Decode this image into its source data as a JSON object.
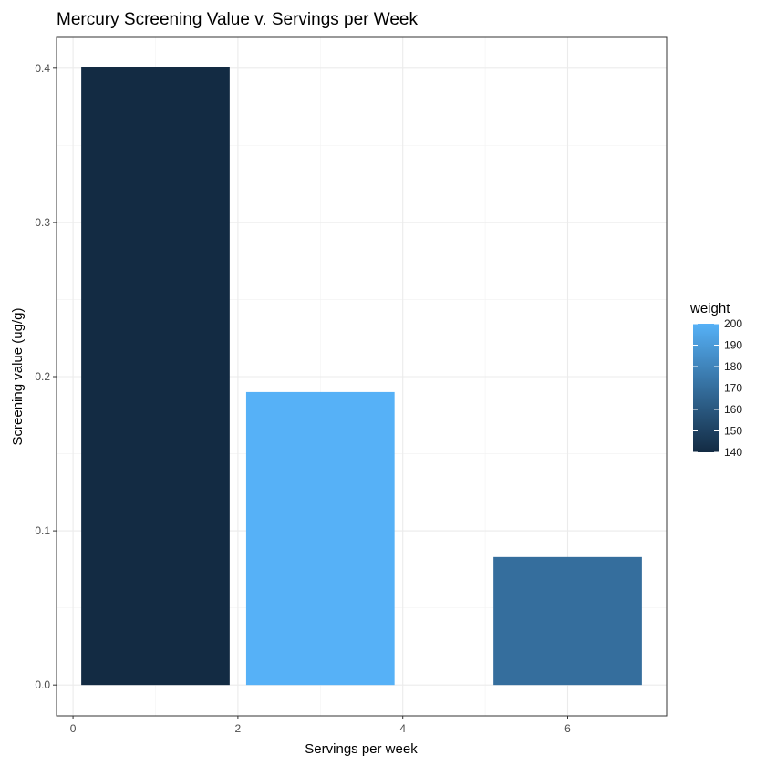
{
  "chart_data": {
    "type": "bar",
    "title": "Mercury Screening Value v. Servings per Week",
    "xlabel": "Servings per week",
    "ylabel": "Screening value (ug/g)",
    "xlim": [
      -0.2,
      7.2
    ],
    "ylim": [
      -0.02,
      0.42
    ],
    "x_ticks": [
      0,
      2,
      4,
      6
    ],
    "y_ticks": [
      0.0,
      0.1,
      0.2,
      0.3,
      0.4
    ],
    "x_tick_labels": [
      "0",
      "2",
      "4",
      "6"
    ],
    "y_tick_labels": [
      "0.0",
      "0.1",
      "0.2",
      "0.3",
      "0.4"
    ],
    "grid": true,
    "bars": [
      {
        "x": 1,
        "width": 1.8,
        "value": 0.401,
        "weight": 140
      },
      {
        "x": 3,
        "width": 1.8,
        "value": 0.19,
        "weight": 200
      },
      {
        "x": 6,
        "width": 1.8,
        "value": 0.083,
        "weight": 170
      }
    ],
    "legend": {
      "title": "weight",
      "placement": "right",
      "min": 140,
      "max": 200,
      "breaks": [
        200,
        190,
        180,
        170,
        160,
        150,
        140
      ],
      "labels": [
        "200",
        "190",
        "180",
        "170",
        "160",
        "150",
        "140"
      ],
      "color_low": "#132B43",
      "color_high": "#56B1F7"
    }
  }
}
